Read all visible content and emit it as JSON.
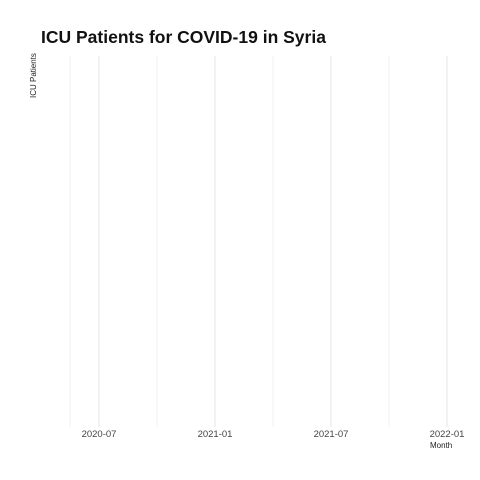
{
  "chart_data": {
    "type": "line",
    "title": "ICU Patients for COVID-19 in Syria",
    "xlabel": "Month",
    "ylabel": "ICU Patients",
    "x_ticks": [
      "2020-07",
      "2021-01",
      "2021-07",
      "2022-01"
    ],
    "xlim": [
      "2020-04",
      "2022-01"
    ],
    "series": [],
    "grid": true,
    "legend": "none"
  }
}
